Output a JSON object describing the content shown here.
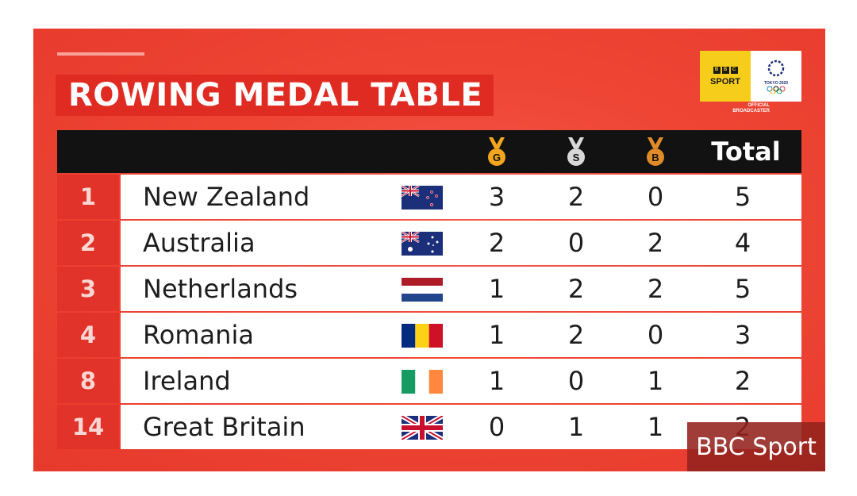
{
  "title": "ROWING MEDAL TABLE",
  "branding": {
    "bbc_blocks": [
      "B",
      "B",
      "C"
    ],
    "sport_label": "SPORT",
    "tokyo_label": "TOKYO 2020",
    "official_line1": "OFFICIAL",
    "official_line2": "BROADCASTER"
  },
  "header": {
    "gold_letter": "G",
    "silver_letter": "S",
    "bronze_letter": "B",
    "total_label": "Total"
  },
  "colors": {
    "panel_red": "#ee4535",
    "rank_red": "#e2332a",
    "header_black": "#121212",
    "gold": "#f2a51e",
    "silver": "#d8d8d8",
    "bronze": "#e08a2a"
  },
  "rows": [
    {
      "rank": "1",
      "country": "New Zealand",
      "flag": "new-zealand",
      "gold": "3",
      "silver": "2",
      "bronze": "0",
      "total": "5"
    },
    {
      "rank": "2",
      "country": "Australia",
      "flag": "australia",
      "gold": "2",
      "silver": "0",
      "bronze": "2",
      "total": "4"
    },
    {
      "rank": "3",
      "country": "Netherlands",
      "flag": "netherlands",
      "gold": "1",
      "silver": "2",
      "bronze": "2",
      "total": "5"
    },
    {
      "rank": "4",
      "country": "Romania",
      "flag": "romania",
      "gold": "1",
      "silver": "2",
      "bronze": "0",
      "total": "3"
    },
    {
      "rank": "8",
      "country": "Ireland",
      "flag": "ireland",
      "gold": "1",
      "silver": "0",
      "bronze": "1",
      "total": "2"
    },
    {
      "rank": "14",
      "country": "Great Britain",
      "flag": "great-britain",
      "gold": "0",
      "silver": "1",
      "bronze": "1",
      "total": "2"
    }
  ],
  "watermark": "BBC Sport"
}
